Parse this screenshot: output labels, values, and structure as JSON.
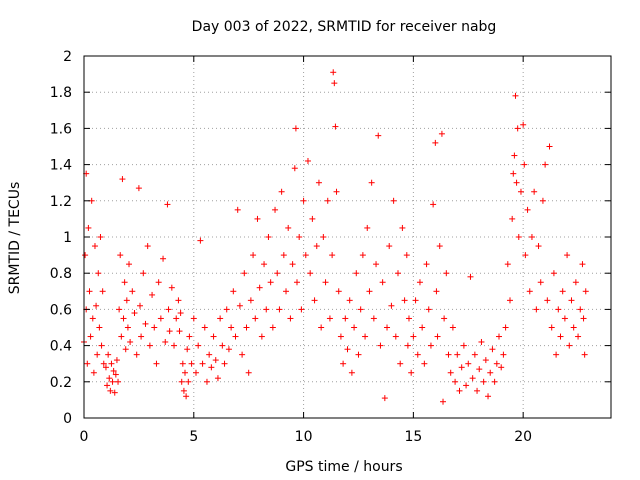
{
  "chart_data": {
    "type": "scatter",
    "title": "Day 003 of 2022, SRMTID for receiver nabg",
    "xlabel": "GPS time / hours",
    "ylabel": "SRMTID / TECUs",
    "xlim": [
      0,
      24
    ],
    "ylim": [
      0,
      2
    ],
    "grid": true,
    "marker": "plus",
    "color": "#ff0000",
    "x_ticks": [
      0,
      5,
      10,
      15,
      20
    ],
    "x_tick_labels": [
      "0",
      "5",
      "10",
      "15",
      "20"
    ],
    "y_ticks": [
      0,
      0.2,
      0.4,
      0.6,
      0.8,
      1,
      1.2,
      1.4,
      1.6,
      1.8,
      2
    ],
    "y_tick_labels": [
      "0",
      "0.2",
      "0.4",
      "0.6",
      "0.8",
      "1",
      "1.2",
      "1.4",
      "1.6",
      "1.8",
      "2"
    ],
    "series": [
      {
        "name": "SRMTID",
        "points": [
          [
            0.0,
            0.42
          ],
          [
            0.05,
            0.9
          ],
          [
            0.1,
            1.35
          ],
          [
            0.1,
            0.6
          ],
          [
            0.15,
            0.3
          ],
          [
            0.2,
            1.05
          ],
          [
            0.25,
            0.7
          ],
          [
            0.3,
            0.45
          ],
          [
            0.35,
            1.2
          ],
          [
            0.4,
            0.55
          ],
          [
            0.45,
            0.25
          ],
          [
            0.5,
            0.95
          ],
          [
            0.55,
            0.62
          ],
          [
            0.6,
            0.35
          ],
          [
            0.65,
            0.8
          ],
          [
            0.7,
            0.5
          ],
          [
            0.75,
            1.0
          ],
          [
            0.8,
            0.4
          ],
          [
            0.85,
            0.7
          ],
          [
            0.9,
            0.3
          ],
          [
            1.0,
            0.28
          ],
          [
            1.05,
            0.18
          ],
          [
            1.1,
            0.35
          ],
          [
            1.15,
            0.22
          ],
          [
            1.2,
            0.15
          ],
          [
            1.25,
            0.3
          ],
          [
            1.3,
            0.2
          ],
          [
            1.35,
            0.26
          ],
          [
            1.4,
            0.14
          ],
          [
            1.45,
            0.24
          ],
          [
            1.5,
            0.32
          ],
          [
            1.55,
            0.2
          ],
          [
            1.6,
            0.6
          ],
          [
            1.65,
            0.9
          ],
          [
            1.7,
            0.45
          ],
          [
            1.75,
            1.32
          ],
          [
            1.8,
            0.55
          ],
          [
            1.85,
            0.75
          ],
          [
            1.9,
            0.38
          ],
          [
            1.95,
            0.65
          ],
          [
            2.0,
            0.5
          ],
          [
            2.05,
            0.85
          ],
          [
            2.1,
            0.42
          ],
          [
            2.2,
            0.7
          ],
          [
            2.3,
            0.58
          ],
          [
            2.4,
            0.35
          ],
          [
            2.5,
            1.27
          ],
          [
            2.55,
            0.62
          ],
          [
            2.6,
            0.45
          ],
          [
            2.7,
            0.8
          ],
          [
            2.8,
            0.52
          ],
          [
            2.9,
            0.95
          ],
          [
            3.0,
            0.4
          ],
          [
            3.1,
            0.68
          ],
          [
            3.2,
            0.5
          ],
          [
            3.3,
            0.3
          ],
          [
            3.4,
            0.75
          ],
          [
            3.5,
            0.55
          ],
          [
            3.6,
            0.88
          ],
          [
            3.7,
            0.42
          ],
          [
            3.8,
            1.18
          ],
          [
            3.85,
            0.6
          ],
          [
            3.9,
            0.48
          ],
          [
            4.0,
            0.72
          ],
          [
            4.1,
            0.4
          ],
          [
            4.2,
            0.55
          ],
          [
            4.3,
            0.65
          ],
          [
            4.35,
            0.48
          ],
          [
            4.4,
            0.58
          ],
          [
            4.45,
            0.2
          ],
          [
            4.5,
            0.3
          ],
          [
            4.55,
            0.15
          ],
          [
            4.6,
            0.25
          ],
          [
            4.65,
            0.12
          ],
          [
            4.7,
            0.38
          ],
          [
            4.75,
            0.2
          ],
          [
            4.8,
            0.45
          ],
          [
            4.9,
            0.3
          ],
          [
            5.0,
            0.55
          ],
          [
            5.1,
            0.25
          ],
          [
            5.2,
            0.4
          ],
          [
            5.3,
            0.98
          ],
          [
            5.4,
            0.3
          ],
          [
            5.5,
            0.5
          ],
          [
            5.6,
            0.2
          ],
          [
            5.7,
            0.35
          ],
          [
            5.8,
            0.28
          ],
          [
            5.9,
            0.45
          ],
          [
            6.0,
            0.32
          ],
          [
            6.1,
            0.22
          ],
          [
            6.2,
            0.55
          ],
          [
            6.3,
            0.4
          ],
          [
            6.4,
            0.3
          ],
          [
            6.5,
            0.6
          ],
          [
            6.6,
            0.38
          ],
          [
            6.7,
            0.5
          ],
          [
            6.8,
            0.7
          ],
          [
            6.9,
            0.45
          ],
          [
            7.0,
            1.15
          ],
          [
            7.1,
            0.62
          ],
          [
            7.2,
            0.35
          ],
          [
            7.3,
            0.8
          ],
          [
            7.4,
            0.5
          ],
          [
            7.5,
            0.25
          ],
          [
            7.6,
            0.65
          ],
          [
            7.7,
            0.9
          ],
          [
            7.8,
            0.55
          ],
          [
            7.9,
            1.1
          ],
          [
            8.0,
            0.72
          ],
          [
            8.1,
            0.45
          ],
          [
            8.2,
            0.85
          ],
          [
            8.3,
            0.6
          ],
          [
            8.4,
            1.0
          ],
          [
            8.5,
            0.75
          ],
          [
            8.6,
            0.5
          ],
          [
            8.7,
            1.15
          ],
          [
            8.8,
            0.8
          ],
          [
            8.9,
            0.6
          ],
          [
            9.0,
            1.25
          ],
          [
            9.1,
            0.9
          ],
          [
            9.2,
            0.7
          ],
          [
            9.3,
            1.05
          ],
          [
            9.4,
            0.55
          ],
          [
            9.5,
            0.85
          ],
          [
            9.6,
            1.38
          ],
          [
            9.65,
            1.6
          ],
          [
            9.7,
            0.75
          ],
          [
            9.8,
            1.0
          ],
          [
            9.9,
            0.6
          ],
          [
            10.0,
            1.2
          ],
          [
            10.1,
            0.9
          ],
          [
            10.2,
            1.42
          ],
          [
            10.3,
            0.8
          ],
          [
            10.4,
            1.1
          ],
          [
            10.5,
            0.65
          ],
          [
            10.6,
            0.95
          ],
          [
            10.7,
            1.3
          ],
          [
            10.8,
            0.5
          ],
          [
            10.9,
            1.0
          ],
          [
            11.0,
            0.75
          ],
          [
            11.1,
            1.2
          ],
          [
            11.2,
            0.55
          ],
          [
            11.3,
            0.9
          ],
          [
            11.35,
            1.91
          ],
          [
            11.4,
            1.85
          ],
          [
            11.45,
            1.61
          ],
          [
            11.5,
            1.25
          ],
          [
            11.6,
            0.7
          ],
          [
            11.7,
            0.45
          ],
          [
            11.8,
            0.3
          ],
          [
            11.9,
            0.55
          ],
          [
            12.0,
            0.38
          ],
          [
            12.1,
            0.65
          ],
          [
            12.2,
            0.25
          ],
          [
            12.3,
            0.5
          ],
          [
            12.4,
            0.8
          ],
          [
            12.5,
            0.35
          ],
          [
            12.6,
            0.6
          ],
          [
            12.7,
            0.9
          ],
          [
            12.8,
            0.45
          ],
          [
            12.9,
            1.05
          ],
          [
            13.0,
            0.7
          ],
          [
            13.1,
            1.3
          ],
          [
            13.2,
            0.55
          ],
          [
            13.3,
            0.85
          ],
          [
            13.4,
            1.56
          ],
          [
            13.5,
            0.4
          ],
          [
            13.6,
            0.75
          ],
          [
            13.7,
            0.11
          ],
          [
            13.8,
            0.5
          ],
          [
            13.9,
            0.95
          ],
          [
            14.0,
            0.62
          ],
          [
            14.1,
            1.2
          ],
          [
            14.2,
            0.45
          ],
          [
            14.3,
            0.8
          ],
          [
            14.4,
            0.3
          ],
          [
            14.5,
            1.05
          ],
          [
            14.6,
            0.65
          ],
          [
            14.7,
            0.9
          ],
          [
            14.75,
            0.4
          ],
          [
            14.8,
            0.55
          ],
          [
            14.9,
            0.25
          ],
          [
            15.0,
            0.45
          ],
          [
            15.1,
            0.65
          ],
          [
            15.2,
            0.35
          ],
          [
            15.3,
            0.75
          ],
          [
            15.4,
            0.5
          ],
          [
            15.5,
            0.3
          ],
          [
            15.6,
            0.85
          ],
          [
            15.7,
            0.6
          ],
          [
            15.8,
            0.4
          ],
          [
            15.9,
            1.18
          ],
          [
            16.0,
            1.52
          ],
          [
            16.05,
            0.7
          ],
          [
            16.1,
            0.45
          ],
          [
            16.2,
            0.95
          ],
          [
            16.3,
            1.57
          ],
          [
            16.35,
            0.09
          ],
          [
            16.4,
            0.55
          ],
          [
            16.5,
            0.8
          ],
          [
            16.6,
            0.35
          ],
          [
            16.7,
            0.25
          ],
          [
            16.8,
            0.5
          ],
          [
            16.9,
            0.2
          ],
          [
            17.0,
            0.35
          ],
          [
            17.1,
            0.15
          ],
          [
            17.2,
            0.28
          ],
          [
            17.3,
            0.4
          ],
          [
            17.4,
            0.18
          ],
          [
            17.5,
            0.3
          ],
          [
            17.6,
            0.78
          ],
          [
            17.7,
            0.22
          ],
          [
            17.8,
            0.35
          ],
          [
            17.9,
            0.15
          ],
          [
            18.0,
            0.27
          ],
          [
            18.1,
            0.42
          ],
          [
            18.2,
            0.2
          ],
          [
            18.3,
            0.32
          ],
          [
            18.4,
            0.12
          ],
          [
            18.5,
            0.25
          ],
          [
            18.6,
            0.38
          ],
          [
            18.7,
            0.2
          ],
          [
            18.8,
            0.3
          ],
          [
            18.9,
            0.45
          ],
          [
            19.0,
            0.28
          ],
          [
            19.1,
            0.35
          ],
          [
            19.2,
            0.5
          ],
          [
            19.3,
            0.85
          ],
          [
            19.4,
            0.65
          ],
          [
            19.5,
            1.1
          ],
          [
            19.55,
            1.35
          ],
          [
            19.6,
            1.45
          ],
          [
            19.65,
            1.78
          ],
          [
            19.7,
            1.3
          ],
          [
            19.75,
            1.6
          ],
          [
            19.8,
            1.0
          ],
          [
            19.9,
            1.25
          ],
          [
            20.0,
            1.62
          ],
          [
            20.05,
            1.4
          ],
          [
            20.1,
            0.9
          ],
          [
            20.2,
            1.15
          ],
          [
            20.3,
            0.7
          ],
          [
            20.4,
            1.0
          ],
          [
            20.5,
            1.25
          ],
          [
            20.6,
            0.6
          ],
          [
            20.7,
            0.95
          ],
          [
            20.8,
            0.75
          ],
          [
            20.9,
            1.2
          ],
          [
            21.0,
            1.4
          ],
          [
            21.1,
            0.65
          ],
          [
            21.2,
            1.5
          ],
          [
            21.3,
            0.5
          ],
          [
            21.4,
            0.8
          ],
          [
            21.5,
            0.35
          ],
          [
            21.6,
            0.6
          ],
          [
            21.7,
            0.45
          ],
          [
            21.8,
            0.7
          ],
          [
            21.9,
            0.55
          ],
          [
            22.0,
            0.9
          ],
          [
            22.1,
            0.4
          ],
          [
            22.2,
            0.65
          ],
          [
            22.3,
            0.5
          ],
          [
            22.4,
            0.75
          ],
          [
            22.5,
            0.45
          ],
          [
            22.6,
            0.6
          ],
          [
            22.7,
            0.85
          ],
          [
            22.75,
            0.55
          ],
          [
            22.8,
            0.35
          ],
          [
            22.85,
            0.7
          ]
        ]
      }
    ]
  }
}
